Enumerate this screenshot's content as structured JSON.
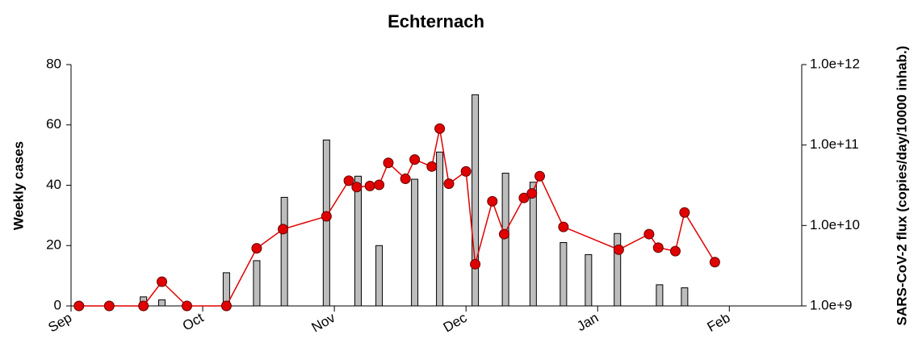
{
  "chart_data": {
    "type": "combo",
    "title": "Echternach",
    "ylabel": "Weekly cases",
    "y2label": "SARS-CoV-2 flux (copies/day/10000 inhab.)",
    "xlim": [
      0,
      5.55
    ],
    "xticks": [
      {
        "value": 0,
        "label": "Sep"
      },
      {
        "value": 1,
        "label": "Oct"
      },
      {
        "value": 2,
        "label": "Nov"
      },
      {
        "value": 3,
        "label": "Dec"
      },
      {
        "value": 4,
        "label": "Jan"
      },
      {
        "value": 5,
        "label": "Feb"
      }
    ],
    "ylim": [
      0,
      80
    ],
    "yticks": [
      0,
      20,
      40,
      60,
      80
    ],
    "y2lim": [
      1000000000,
      1000000000000
    ],
    "y2scale": "log",
    "y2ticks": [
      {
        "value": 1000000000,
        "label": "1.0e+9"
      },
      {
        "value": 10000000000,
        "label": "1.0e+10"
      },
      {
        "value": 100000000000,
        "label": "1.0e+11"
      },
      {
        "value": 1000000000000,
        "label": "1.0e+12"
      }
    ],
    "series": [
      {
        "type": "bar",
        "color": "#bdbdbd",
        "x": [
          0.55,
          0.69,
          1.18,
          1.41,
          1.62,
          1.94,
          2.18,
          2.34,
          2.61,
          2.8,
          3.07,
          3.3,
          3.51,
          3.74,
          3.93,
          4.15,
          4.47,
          4.66
        ],
        "values": [
          3,
          2,
          11,
          15,
          36,
          55,
          43,
          20,
          42,
          51,
          70,
          44,
          41,
          21,
          17,
          24,
          7,
          6
        ]
      },
      {
        "type": "line",
        "axis": "y2",
        "color": "#e00000",
        "x": [
          0.06,
          0.29,
          0.55,
          0.69,
          0.88,
          1.18,
          1.41,
          1.61,
          1.94,
          2.11,
          2.17,
          2.27,
          2.34,
          2.41,
          2.54,
          2.61,
          2.74,
          2.8,
          2.87,
          3.0,
          3.07,
          3.2,
          3.29,
          3.44,
          3.5,
          3.56,
          3.74,
          4.16,
          4.39,
          4.46,
          4.59,
          4.66,
          4.89
        ],
        "values": [
          1000000000,
          1000000000,
          1000000000,
          2000000000,
          1000000000,
          1000000000,
          5200000000,
          9000000000,
          13000000000,
          36000000000,
          30000000000,
          31000000000,
          32000000000,
          60000000000,
          38000000000,
          66000000000,
          54000000000,
          160000000000,
          33000000000,
          47000000000,
          3300000000,
          20000000000,
          7800000000,
          22000000000,
          25000000000,
          41000000000,
          9600000000,
          5000000000,
          7800000000,
          5300000000,
          4800000000,
          14500000000,
          3500000000
        ]
      }
    ]
  }
}
